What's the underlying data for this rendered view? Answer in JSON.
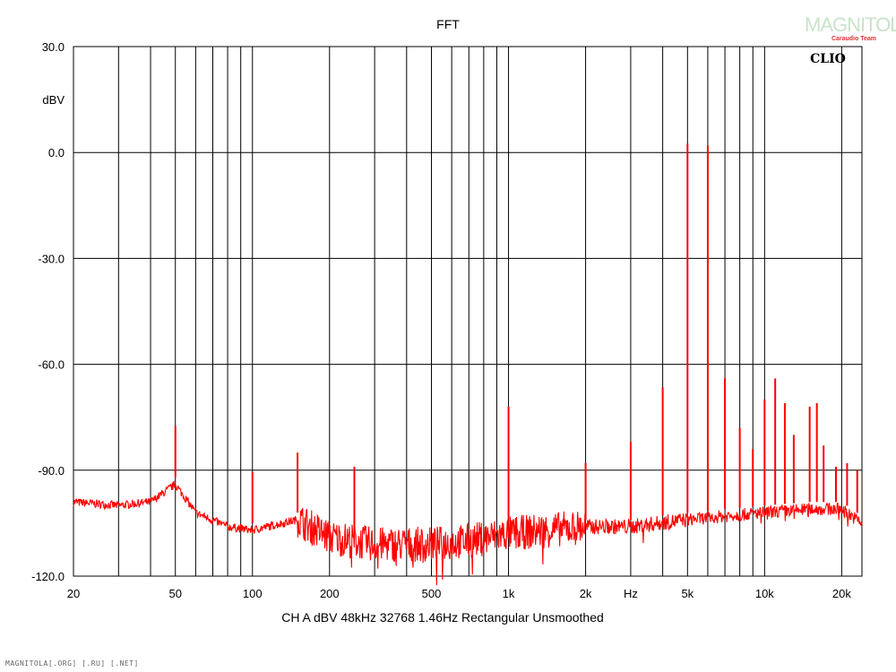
{
  "logo": {
    "text": "MAGNITOLA",
    "sub": "Caraudio Team"
  },
  "watermark": "MAGNITOLA[.ORG] [.RU] [.NET]",
  "chart_data": {
    "type": "line",
    "title": "FFT",
    "badge": "CLIO",
    "ylabel": "dBV",
    "xlabel": "Hz",
    "x_scale": "log",
    "xlim": [
      20,
      24000
    ],
    "ylim": [
      -120,
      30
    ],
    "grid": true,
    "line_color": "#ff0000",
    "info_line": "CH A   dBV   48kHz   32768   1.46Hz   Rectangular   Unsmoothed",
    "y_ticks": [
      {
        "value": 30,
        "label": "30.0"
      },
      {
        "value": 0,
        "label": "0.0"
      },
      {
        "value": -30,
        "label": "-30.0"
      },
      {
        "value": -60,
        "label": "-60.0"
      },
      {
        "value": -90,
        "label": "-90.0"
      },
      {
        "value": -120,
        "label": "-120.0"
      }
    ],
    "y_unit_tick": {
      "value": 15,
      "label": "dBV"
    },
    "x_ticks": [
      {
        "value": 20,
        "label": "20"
      },
      {
        "value": 50,
        "label": "50"
      },
      {
        "value": 100,
        "label": "100"
      },
      {
        "value": 200,
        "label": "200"
      },
      {
        "value": 500,
        "label": "500"
      },
      {
        "value": 1000,
        "label": "1k"
      },
      {
        "value": 2000,
        "label": "2k"
      },
      {
        "value": 3000,
        "label": "Hz"
      },
      {
        "value": 5000,
        "label": "5k"
      },
      {
        "value": 10000,
        "label": "10k"
      },
      {
        "value": 20000,
        "label": "20k"
      }
    ],
    "series": [
      {
        "baseline": [
          [
            20,
            -99
          ],
          [
            30,
            -100
          ],
          [
            40,
            -99
          ],
          [
            50,
            -94
          ],
          [
            60,
            -102
          ],
          [
            80,
            -106
          ],
          [
            100,
            -107
          ],
          [
            150,
            -104
          ],
          [
            200,
            -109
          ],
          [
            300,
            -111
          ],
          [
            500,
            -111
          ],
          [
            700,
            -110
          ],
          [
            1000,
            -108
          ],
          [
            2000,
            -106
          ],
          [
            3000,
            -106
          ],
          [
            5000,
            -104
          ],
          [
            7000,
            -103
          ],
          [
            10000,
            -102
          ],
          [
            15000,
            -101
          ],
          [
            20000,
            -101
          ],
          [
            24000,
            -105
          ]
        ],
        "peaks": [
          [
            50,
            -77.5
          ],
          [
            100,
            -90.5
          ],
          [
            150,
            -85
          ],
          [
            250,
            -89
          ],
          [
            1000,
            -72
          ],
          [
            2000,
            -88
          ],
          [
            3000,
            -82
          ],
          [
            4000,
            -66.5
          ],
          [
            5000,
            2.5
          ],
          [
            6000,
            2
          ],
          [
            7000,
            -64
          ],
          [
            8000,
            -78
          ],
          [
            9000,
            -84
          ],
          [
            10000,
            -70
          ],
          [
            11000,
            -64
          ],
          [
            12000,
            -71
          ],
          [
            13000,
            -80
          ],
          [
            15000,
            -72
          ],
          [
            16000,
            -71
          ],
          [
            17000,
            -83
          ],
          [
            19000,
            -89
          ],
          [
            21000,
            -88
          ],
          [
            23000,
            -90
          ]
        ]
      }
    ]
  }
}
